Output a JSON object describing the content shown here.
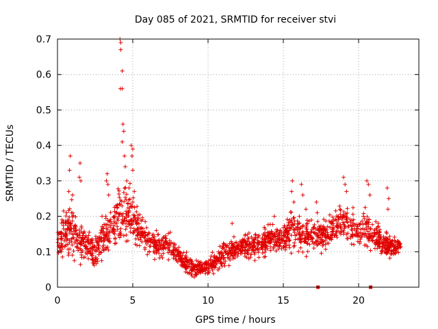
{
  "chart_data": {
    "type": "scatter",
    "title": "Day 085 of 2021, SRMTID for receiver stvi",
    "xlabel": "GPS time / hours",
    "ylabel": "SRMTID / TECUs",
    "xlim": [
      0,
      24
    ],
    "ylim": [
      0,
      0.7
    ],
    "xticks": [
      0,
      5,
      10,
      15,
      20
    ],
    "yticks": [
      0,
      0.1,
      0.2,
      0.3,
      0.4,
      0.5,
      0.6,
      0.7
    ],
    "grid": true,
    "marker": "+",
    "color": "#e00000",
    "series": [
      {
        "name": "SRMTID",
        "envelope": [
          [
            0.0,
            0.06,
            0.17
          ],
          [
            0.5,
            0.08,
            0.21
          ],
          [
            1.0,
            0.06,
            0.24
          ],
          [
            1.5,
            0.05,
            0.19
          ],
          [
            2.0,
            0.06,
            0.16
          ],
          [
            2.5,
            0.03,
            0.14
          ],
          [
            3.0,
            0.05,
            0.2
          ],
          [
            3.5,
            0.07,
            0.22
          ],
          [
            4.0,
            0.09,
            0.28
          ],
          [
            4.5,
            0.1,
            0.3
          ],
          [
            5.0,
            0.1,
            0.26
          ],
          [
            5.5,
            0.1,
            0.2
          ],
          [
            6.0,
            0.08,
            0.18
          ],
          [
            6.5,
            0.07,
            0.15
          ],
          [
            7.0,
            0.07,
            0.16
          ],
          [
            7.5,
            0.06,
            0.15
          ],
          [
            8.0,
            0.05,
            0.12
          ],
          [
            8.5,
            0.03,
            0.1
          ],
          [
            9.0,
            0.02,
            0.08
          ],
          [
            9.5,
            0.02,
            0.08
          ],
          [
            10.0,
            0.03,
            0.09
          ],
          [
            10.5,
            0.03,
            0.1
          ],
          [
            11.0,
            0.04,
            0.12
          ],
          [
            11.5,
            0.06,
            0.14
          ],
          [
            12.0,
            0.07,
            0.14
          ],
          [
            12.5,
            0.07,
            0.15
          ],
          [
            13.0,
            0.07,
            0.15
          ],
          [
            13.5,
            0.07,
            0.16
          ],
          [
            14.0,
            0.08,
            0.18
          ],
          [
            14.5,
            0.09,
            0.17
          ],
          [
            15.0,
            0.08,
            0.17
          ],
          [
            15.5,
            0.09,
            0.22
          ],
          [
            16.0,
            0.08,
            0.2
          ],
          [
            16.5,
            0.08,
            0.18
          ],
          [
            17.0,
            0.09,
            0.2
          ],
          [
            17.5,
            0.08,
            0.18
          ],
          [
            18.0,
            0.1,
            0.2
          ],
          [
            18.5,
            0.11,
            0.22
          ],
          [
            19.0,
            0.12,
            0.24
          ],
          [
            19.5,
            0.11,
            0.22
          ],
          [
            20.0,
            0.09,
            0.2
          ],
          [
            20.5,
            0.1,
            0.23
          ],
          [
            21.0,
            0.09,
            0.18
          ],
          [
            21.5,
            0.08,
            0.17
          ],
          [
            22.0,
            0.07,
            0.15
          ],
          [
            22.5,
            0.08,
            0.14
          ],
          [
            22.8,
            0.08,
            0.15
          ]
        ],
        "extremes": [
          [
            0.3,
            0.19
          ],
          [
            0.6,
            0.21
          ],
          [
            0.75,
            0.27
          ],
          [
            0.8,
            0.33
          ],
          [
            0.85,
            0.37
          ],
          [
            1.0,
            0.26
          ],
          [
            1.45,
            0.31
          ],
          [
            1.5,
            0.35
          ],
          [
            1.55,
            0.3
          ],
          [
            3.25,
            0.3
          ],
          [
            3.3,
            0.32
          ],
          [
            3.35,
            0.29
          ],
          [
            3.4,
            0.26
          ],
          [
            4.15,
            0.7
          ],
          [
            4.2,
            0.69
          ],
          [
            4.2,
            0.67
          ],
          [
            4.18,
            0.56
          ],
          [
            4.3,
            0.61
          ],
          [
            4.3,
            0.56
          ],
          [
            4.35,
            0.46
          ],
          [
            4.4,
            0.44
          ],
          [
            4.3,
            0.41
          ],
          [
            4.45,
            0.37
          ],
          [
            4.5,
            0.34
          ],
          [
            4.6,
            0.3
          ],
          [
            4.9,
            0.4
          ],
          [
            5.0,
            0.39
          ],
          [
            4.95,
            0.37
          ],
          [
            5.0,
            0.33
          ],
          [
            5.1,
            0.27
          ],
          [
            4.75,
            0.28
          ],
          [
            11.6,
            0.18
          ],
          [
            14.4,
            0.2
          ],
          [
            15.6,
            0.3
          ],
          [
            15.55,
            0.27
          ],
          [
            15.7,
            0.24
          ],
          [
            16.2,
            0.29
          ],
          [
            16.3,
            0.26
          ],
          [
            16.5,
            0.22
          ],
          [
            17.2,
            0.24
          ],
          [
            17.25,
            0.21
          ],
          [
            19.0,
            0.31
          ],
          [
            19.1,
            0.29
          ],
          [
            19.2,
            0.27
          ],
          [
            20.55,
            0.3
          ],
          [
            20.65,
            0.29
          ],
          [
            20.75,
            0.26
          ],
          [
            21.9,
            0.28
          ],
          [
            22.0,
            0.25
          ],
          [
            21.95,
            0.22
          ]
        ],
        "point_count": 1900
      }
    ],
    "annotations": [
      {
        "type": "square-marker",
        "x": 17.3,
        "y": 0.0
      },
      {
        "type": "square-marker",
        "x": 20.8,
        "y": 0.0
      }
    ]
  }
}
